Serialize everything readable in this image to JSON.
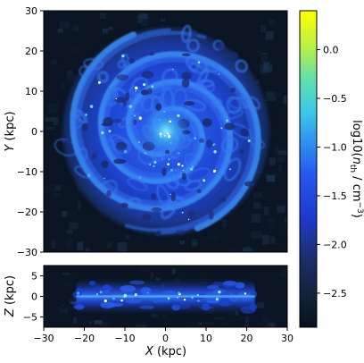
{
  "chart_data": [
    {
      "type": "heatmap",
      "panel": "face-on",
      "description_of_content": "face-on projected gas density map of a barred spiral galaxy",
      "xlim": [
        -30,
        30
      ],
      "ylim": [
        -30,
        30
      ],
      "xticks": [
        -30,
        -20,
        -10,
        0,
        10,
        20,
        30
      ],
      "yticks": [
        -30,
        -20,
        -10,
        0,
        10,
        20,
        30
      ],
      "xlabel": "",
      "ylabel": "Y (kpc)",
      "ylabel_parts": {
        "var": "Y",
        "unit": " (kpc)"
      },
      "disk_radius_kpc": 25,
      "spiral_arms": 2
    },
    {
      "type": "heatmap",
      "panel": "edge-on",
      "xlim": [
        -30,
        30
      ],
      "ylim": [
        -7.5,
        7.5
      ],
      "xticks": [
        -30,
        -20,
        -10,
        0,
        10,
        20,
        30
      ],
      "yticks": [
        -5,
        0,
        5
      ],
      "xlabel": "X (kpc)",
      "xlabel_parts": {
        "var": "X",
        "unit": " (kpc)"
      },
      "ylabel": "Z (kpc)",
      "ylabel_parts": {
        "var": "Z",
        "unit": " (kpc)"
      },
      "disk_half_length_kpc": 22,
      "disk_scale_height_kpc": 1.5
    }
  ],
  "colorbar": {
    "label": "log10(n_th / cm^-3)",
    "label_parts": {
      "prefix": "log10(",
      "var": "n",
      "sub": "th",
      "mid": " / cm",
      "sup": "−3",
      "suffix": ")"
    },
    "range": [
      -2.85,
      0.4
    ],
    "ticks": [
      "0.0",
      "-0.5",
      "-1.0",
      "-1.5",
      "-2.0",
      "-2.5"
    ],
    "tick_values": [
      0.0,
      -0.5,
      -1.0,
      -1.5,
      -2.0,
      -2.5
    ],
    "colormap": "viridis-like",
    "colors": {
      "low": "#0a1322",
      "mid": "#1f3ddc",
      "high": "#ffff00"
    }
  }
}
